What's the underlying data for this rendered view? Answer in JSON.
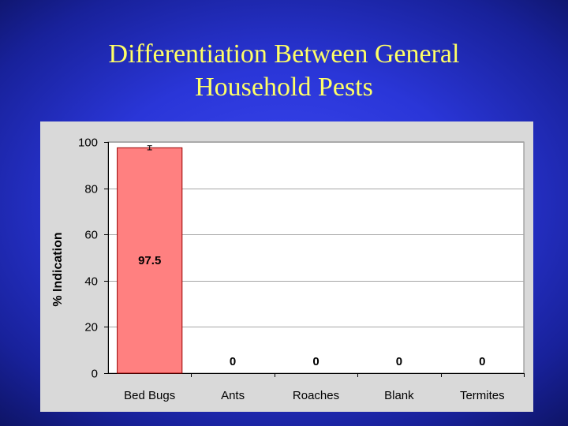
{
  "slide": {
    "title_line1": "Differentiation Between General",
    "title_line2": "Household Pests",
    "title_color": "#ffff66",
    "background_color": "#2a36d8"
  },
  "chart_data": {
    "type": "bar",
    "title": "",
    "xlabel": "",
    "ylabel": "% Indication",
    "categories": [
      "Bed Bugs",
      "Ants",
      "Roaches",
      "Blank",
      "Termites"
    ],
    "values": [
      97.5,
      0,
      0,
      0,
      0
    ],
    "data_labels": [
      "97.5",
      "0",
      "0",
      "0",
      "0"
    ],
    "error_bars": [
      0.9,
      0,
      0,
      0,
      0
    ],
    "ylim": [
      0,
      100
    ],
    "yticks": [
      0,
      20,
      40,
      60,
      80,
      100
    ],
    "grid": true,
    "legend": "none",
    "bar_color": "#ff8080",
    "bar_edge_color": "#990000",
    "plot_area_color": "#ffffff",
    "chart_area_color": "#d9d9d9"
  }
}
